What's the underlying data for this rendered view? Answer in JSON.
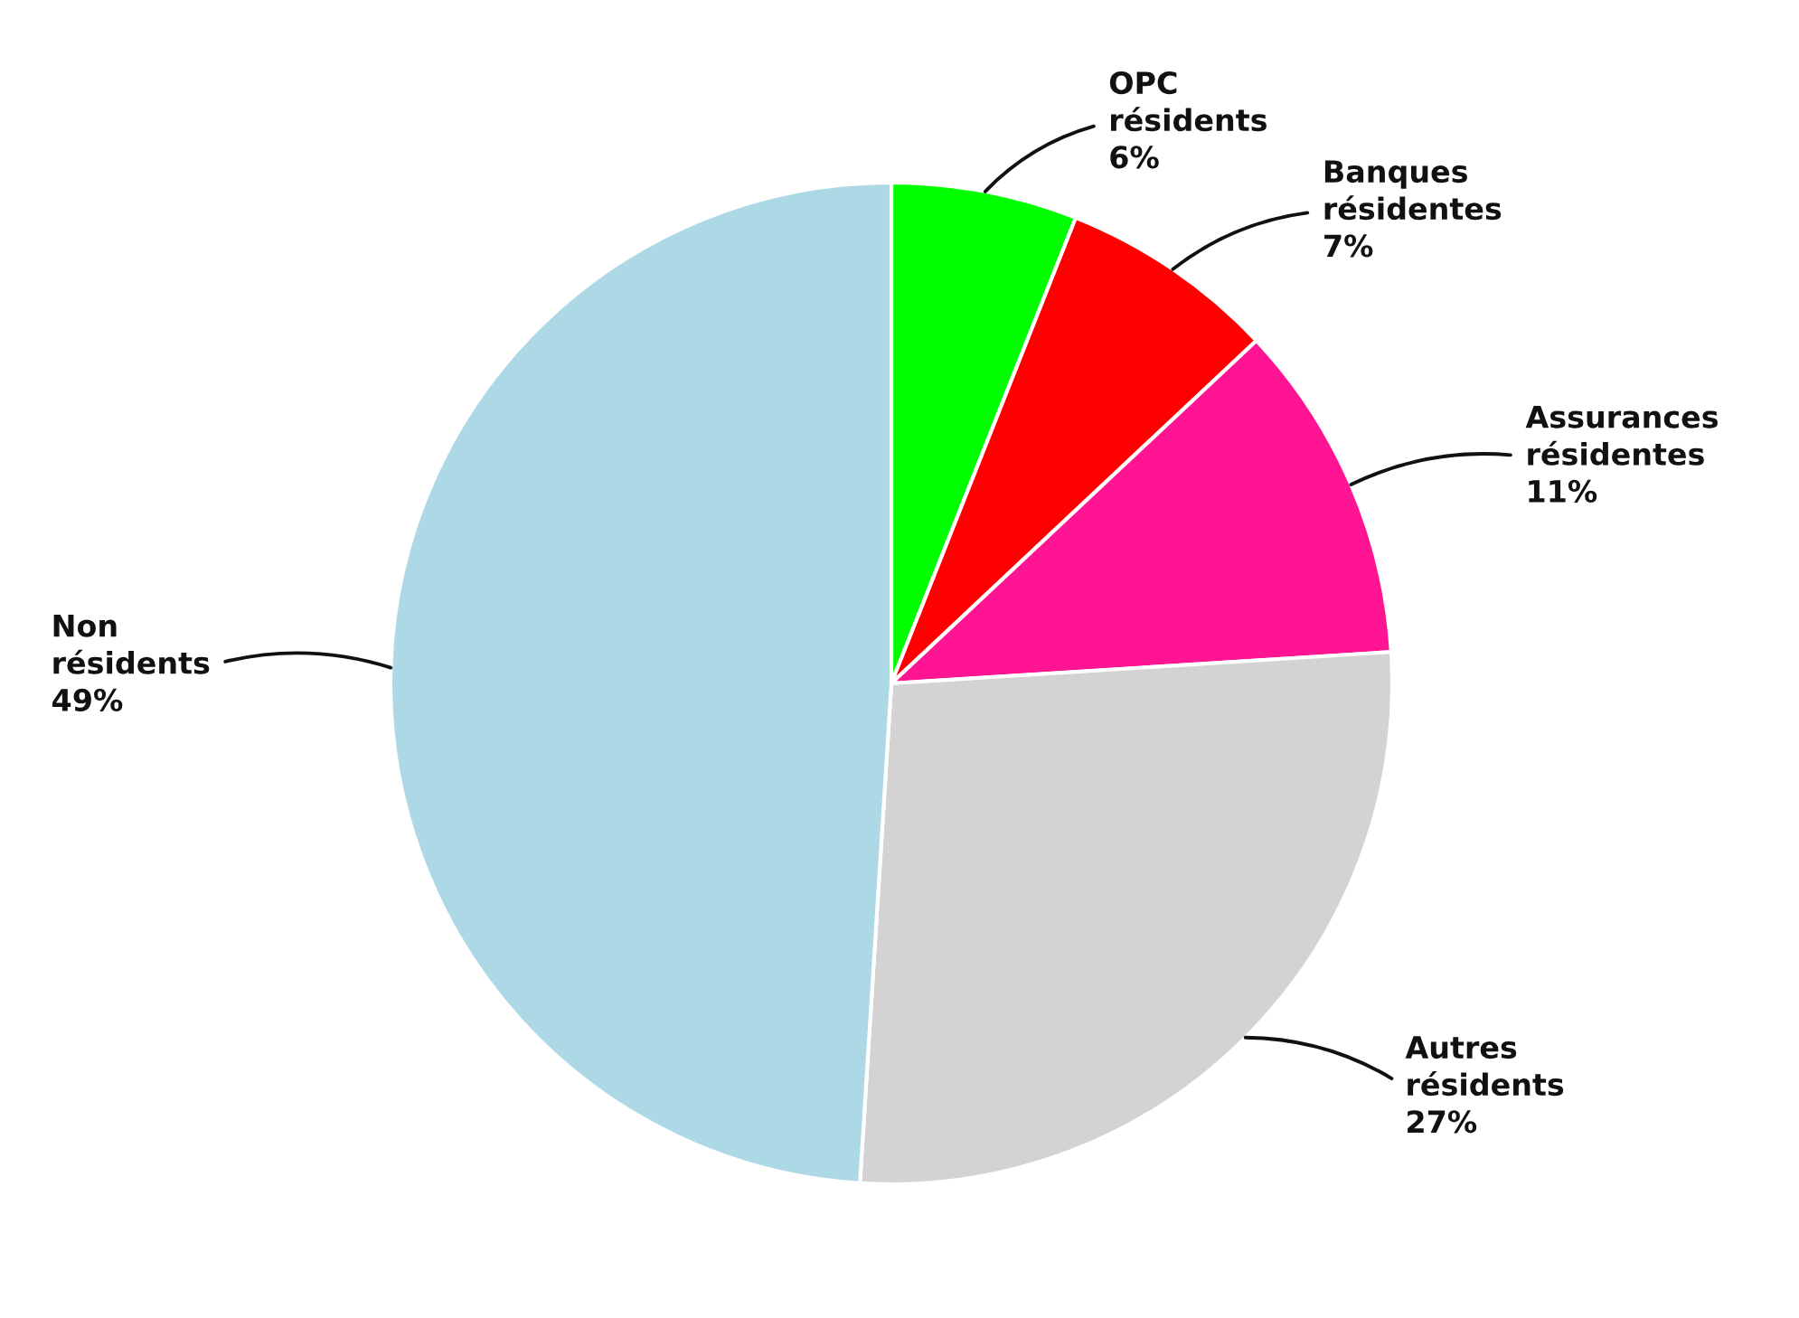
{
  "chart_data": {
    "type": "pie",
    "categories": [
      "OPC résidents",
      "Banques résidentes",
      "Assurances résidentes",
      "Autres résidents",
      "Non résidents"
    ],
    "values": [
      6,
      7,
      11,
      27,
      49
    ],
    "value_labels": [
      "6%",
      "7%",
      "11%",
      "27%",
      "49%"
    ],
    "colors": [
      "#00ff00",
      "#ff0000",
      "#ff1493",
      "#d3d3d3",
      "#add8e6"
    ]
  }
}
